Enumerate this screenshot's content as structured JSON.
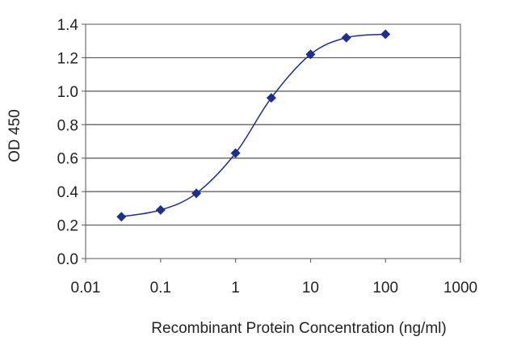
{
  "chart_data": {
    "type": "line",
    "title": "",
    "xlabel": "Recombinant Protein Concentration (ng/ml)",
    "ylabel": "OD 450",
    "xscale": "log",
    "xlim": [
      0.01,
      1000
    ],
    "ylim": [
      0,
      1.4
    ],
    "xticks": [
      "0.01",
      "0.1",
      "1",
      "10",
      "100",
      "1000"
    ],
    "xtick_values": [
      0.01,
      0.1,
      1,
      10,
      100,
      1000
    ],
    "yticks": [
      "0.0",
      "0.2",
      "0.4",
      "0.6",
      "0.8",
      "1.0",
      "1.2",
      "1.4"
    ],
    "ytick_values": [
      0,
      0.2,
      0.4,
      0.6,
      0.8,
      1.0,
      1.2,
      1.4
    ],
    "grid": "horizontal",
    "legend": "none",
    "series": [
      {
        "color": "#1e2f8c",
        "marker": "diamond",
        "x": [
          0.03,
          0.1,
          0.3,
          1,
          3,
          10,
          30,
          100
        ],
        "y": [
          0.25,
          0.29,
          0.39,
          0.63,
          0.96,
          1.22,
          1.32,
          1.34
        ]
      }
    ]
  }
}
